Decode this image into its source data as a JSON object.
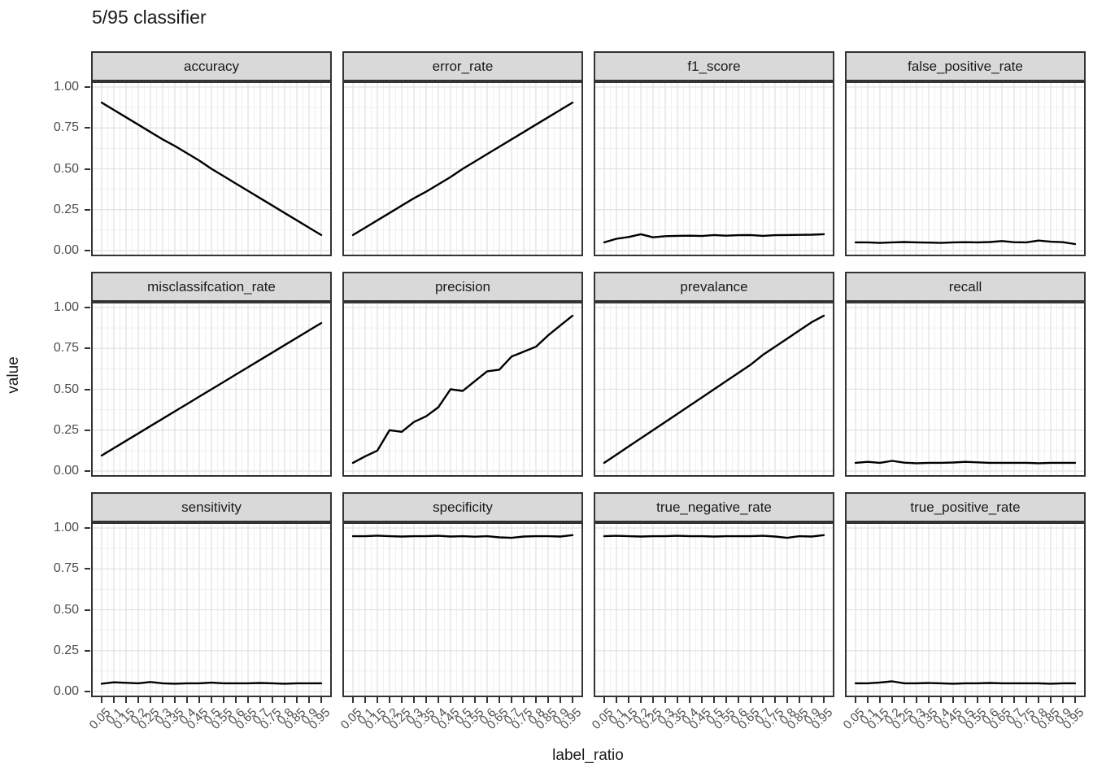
{
  "chart_data": {
    "type": "line",
    "title": "5/95 classifier",
    "xlabel": "label_ratio",
    "ylabel": "value",
    "x": [
      0.05,
      0.1,
      0.15,
      0.2,
      0.25,
      0.3,
      0.35,
      0.4,
      0.45,
      0.5,
      0.55,
      0.6,
      0.65,
      0.7,
      0.75,
      0.8,
      0.85,
      0.9,
      0.95
    ],
    "x_tick_labels": [
      "0.05",
      "0.1",
      "0.15",
      "0.2",
      "0.25",
      "0.3",
      "0.35",
      "0.4",
      "0.45",
      "0.5",
      "0.55",
      "0.6",
      "0.65",
      "0.7",
      "0.75",
      "0.8",
      "0.85",
      "0.9",
      "0.95"
    ],
    "y_tick_values": [
      1.0,
      0.75,
      0.5,
      0.25,
      0.0
    ],
    "y_tick_labels": [
      "1.00",
      "0.75",
      "0.50",
      "0.25",
      "0.00"
    ],
    "y_minor": [
      0.125,
      0.375,
      0.625,
      0.875
    ],
    "ylim": [
      0,
      1
    ],
    "grid": true,
    "legend_position": "none",
    "facets": [
      {
        "name": "accuracy",
        "values": [
          0.905,
          0.86,
          0.815,
          0.77,
          0.725,
          0.68,
          0.64,
          0.595,
          0.55,
          0.5,
          0.455,
          0.41,
          0.365,
          0.32,
          0.275,
          0.23,
          0.185,
          0.14,
          0.095
        ]
      },
      {
        "name": "error_rate",
        "values": [
          0.095,
          0.14,
          0.185,
          0.23,
          0.275,
          0.32,
          0.36,
          0.405,
          0.45,
          0.5,
          0.545,
          0.59,
          0.635,
          0.68,
          0.725,
          0.77,
          0.815,
          0.86,
          0.905
        ]
      },
      {
        "name": "f1_score",
        "values": [
          0.05,
          0.072,
          0.083,
          0.1,
          0.081,
          0.088,
          0.09,
          0.091,
          0.089,
          0.095,
          0.091,
          0.094,
          0.095,
          0.09,
          0.094,
          0.095,
          0.096,
          0.097,
          0.1
        ]
      },
      {
        "name": "false_positive_rate",
        "values": [
          0.05,
          0.05,
          0.047,
          0.05,
          0.052,
          0.05,
          0.049,
          0.047,
          0.05,
          0.051,
          0.05,
          0.052,
          0.058,
          0.051,
          0.05,
          0.061,
          0.054,
          0.051,
          0.04
        ]
      },
      {
        "name": "misclassifcation_rate",
        "values": [
          0.095,
          0.14,
          0.185,
          0.23,
          0.275,
          0.32,
          0.365,
          0.41,
          0.455,
          0.5,
          0.545,
          0.59,
          0.635,
          0.68,
          0.725,
          0.77,
          0.815,
          0.86,
          0.905
        ]
      },
      {
        "name": "precision",
        "values": [
          0.05,
          0.09,
          0.125,
          0.25,
          0.24,
          0.3,
          0.335,
          0.39,
          0.5,
          0.49,
          0.55,
          0.61,
          0.62,
          0.7,
          0.73,
          0.76,
          0.83,
          0.89,
          0.95
        ]
      },
      {
        "name": "prevalance",
        "values": [
          0.05,
          0.1,
          0.15,
          0.2,
          0.25,
          0.3,
          0.35,
          0.4,
          0.45,
          0.5,
          0.55,
          0.6,
          0.65,
          0.71,
          0.76,
          0.81,
          0.86,
          0.91,
          0.95
        ]
      },
      {
        "name": "recall",
        "values": [
          0.05,
          0.056,
          0.05,
          0.062,
          0.051,
          0.048,
          0.05,
          0.05,
          0.052,
          0.056,
          0.053,
          0.05,
          0.05,
          0.05,
          0.05,
          0.048,
          0.05,
          0.05,
          0.05
        ]
      },
      {
        "name": "sensitivity",
        "values": [
          0.048,
          0.056,
          0.053,
          0.05,
          0.058,
          0.05,
          0.048,
          0.05,
          0.05,
          0.054,
          0.05,
          0.05,
          0.05,
          0.052,
          0.05,
          0.048,
          0.05,
          0.05,
          0.05
        ]
      },
      {
        "name": "specificity",
        "values": [
          0.95,
          0.95,
          0.953,
          0.95,
          0.948,
          0.95,
          0.95,
          0.952,
          0.948,
          0.95,
          0.947,
          0.95,
          0.943,
          0.94,
          0.948,
          0.95,
          0.95,
          0.948,
          0.956
        ]
      },
      {
        "name": "true_negative_rate",
        "values": [
          0.95,
          0.952,
          0.95,
          0.948,
          0.95,
          0.95,
          0.952,
          0.95,
          0.95,
          0.948,
          0.95,
          0.95,
          0.95,
          0.952,
          0.948,
          0.94,
          0.95,
          0.948,
          0.956
        ]
      },
      {
        "name": "true_positive_rate",
        "values": [
          0.05,
          0.05,
          0.055,
          0.062,
          0.05,
          0.05,
          0.052,
          0.05,
          0.048,
          0.05,
          0.05,
          0.052,
          0.05,
          0.05,
          0.05,
          0.05,
          0.048,
          0.05,
          0.05
        ]
      }
    ],
    "colors": {
      "line": "#000000",
      "strip_fill": "#d9d9d9",
      "strip_border": "#333333",
      "panel_border": "#333333",
      "grid_major": "#e2e2e2",
      "grid_minor": "#f0f0f0",
      "tick_text": "#4d4d4d",
      "text": "#1a1a1a",
      "background": "#ffffff"
    }
  }
}
